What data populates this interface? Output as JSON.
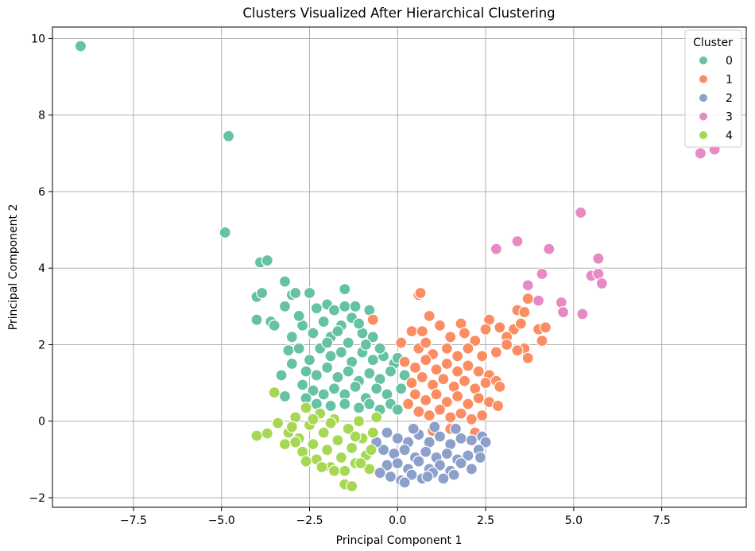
{
  "chart_data": {
    "type": "scatter",
    "title": "Clusters Visualized After Hierarchical Clustering",
    "xlabel": "Principal Component 1",
    "ylabel": "Principal Component 2",
    "xlim": [
      -9.8,
      9.9
    ],
    "ylim": [
      -2.25,
      10.3
    ],
    "xticks": [
      -7.5,
      -5.0,
      -2.5,
      0.0,
      2.5,
      5.0,
      7.5
    ],
    "xtick_labels": [
      "−7.5",
      "−5.0",
      "−2.5",
      "0.0",
      "2.5",
      "5.0",
      "7.5"
    ],
    "yticks": [
      -2,
      0,
      2,
      4,
      6,
      8,
      10
    ],
    "ytick_labels": [
      "−2",
      "0",
      "2",
      "4",
      "6",
      "8",
      "10"
    ],
    "grid": true,
    "legend": {
      "title": "Cluster",
      "position": "top-right"
    },
    "series": [
      {
        "name": "0",
        "color": "#66c2a5",
        "points": [
          [
            -9.0,
            9.8
          ],
          [
            -4.8,
            7.45
          ],
          [
            -4.9,
            4.93
          ],
          [
            -3.9,
            4.15
          ],
          [
            -3.7,
            4.2
          ],
          [
            -4.0,
            3.25
          ],
          [
            -3.85,
            3.35
          ],
          [
            -4.0,
            2.65
          ],
          [
            -3.6,
            2.6
          ],
          [
            -3.5,
            2.5
          ],
          [
            -3.2,
            3.65
          ],
          [
            -3.0,
            3.3
          ],
          [
            -2.9,
            3.35
          ],
          [
            -2.5,
            3.35
          ],
          [
            -3.2,
            3.0
          ],
          [
            -2.3,
            2.95
          ],
          [
            -2.0,
            3.05
          ],
          [
            -1.8,
            2.9
          ],
          [
            -1.5,
            3.0
          ],
          [
            -1.5,
            3.45
          ],
          [
            -1.2,
            3.0
          ],
          [
            -0.8,
            2.9
          ],
          [
            -3.0,
            2.2
          ],
          [
            -2.7,
            2.5
          ],
          [
            -2.4,
            2.3
          ],
          [
            -2.1,
            2.6
          ],
          [
            -1.9,
            2.2
          ],
          [
            -1.6,
            2.5
          ],
          [
            -1.3,
            2.7
          ],
          [
            -1.0,
            2.3
          ],
          [
            -0.7,
            2.2
          ],
          [
            -3.1,
            1.85
          ],
          [
            -2.8,
            1.9
          ],
          [
            -2.5,
            1.6
          ],
          [
            -2.2,
            1.9
          ],
          [
            -1.9,
            1.7
          ],
          [
            -1.6,
            1.8
          ],
          [
            -1.3,
            1.55
          ],
          [
            -1.0,
            1.8
          ],
          [
            -0.7,
            1.6
          ],
          [
            -0.4,
            1.7
          ],
          [
            -0.1,
            1.5
          ],
          [
            -3.0,
            1.5
          ],
          [
            -2.6,
            1.3
          ],
          [
            -2.3,
            1.2
          ],
          [
            -2.0,
            1.4
          ],
          [
            -1.7,
            1.15
          ],
          [
            -1.4,
            1.3
          ],
          [
            -1.1,
            1.05
          ],
          [
            -0.8,
            1.25
          ],
          [
            -0.5,
            1.1
          ],
          [
            -0.2,
            1.3
          ],
          [
            0.2,
            1.2
          ],
          [
            -3.3,
            1.2
          ],
          [
            -2.7,
            0.95
          ],
          [
            -2.4,
            0.8
          ],
          [
            -2.1,
            0.7
          ],
          [
            -1.8,
            0.85
          ],
          [
            -1.5,
            0.7
          ],
          [
            -1.2,
            0.9
          ],
          [
            -0.9,
            0.6
          ],
          [
            -0.6,
            0.85
          ],
          [
            -0.3,
            0.7
          ],
          [
            0.1,
            0.85
          ],
          [
            -2.6,
            0.6
          ],
          [
            -2.3,
            0.45
          ],
          [
            -1.9,
            0.4
          ],
          [
            -1.5,
            0.45
          ],
          [
            -1.1,
            0.35
          ],
          [
            -0.8,
            0.45
          ],
          [
            -0.5,
            0.3
          ],
          [
            -0.2,
            0.45
          ],
          [
            0.0,
            0.3
          ],
          [
            -3.2,
            0.65
          ],
          [
            -2.0,
            2.05
          ],
          [
            -1.4,
            2.05
          ],
          [
            -0.9,
            2.0
          ],
          [
            -2.8,
            2.75
          ],
          [
            -1.7,
            2.35
          ],
          [
            -1.1,
            2.55
          ],
          [
            -0.5,
            1.9
          ],
          [
            0.0,
            1.65
          ]
        ]
      },
      {
        "name": "1",
        "color": "#fc8d62",
        "points": [
          [
            0.6,
            3.3
          ],
          [
            0.65,
            3.35
          ],
          [
            3.7,
            3.2
          ],
          [
            3.4,
            2.9
          ],
          [
            3.6,
            2.85
          ],
          [
            0.9,
            2.75
          ],
          [
            1.2,
            2.5
          ],
          [
            1.8,
            2.55
          ],
          [
            2.6,
            2.65
          ],
          [
            2.9,
            2.45
          ],
          [
            3.3,
            2.4
          ],
          [
            3.5,
            2.55
          ],
          [
            4.0,
            2.4
          ],
          [
            4.2,
            2.45
          ],
          [
            0.4,
            2.35
          ],
          [
            0.7,
            2.35
          ],
          [
            1.5,
            2.2
          ],
          [
            2.2,
            2.1
          ],
          [
            2.5,
            2.4
          ],
          [
            3.1,
            2.2
          ],
          [
            3.6,
            1.9
          ],
          [
            3.7,
            1.65
          ],
          [
            4.1,
            2.1
          ],
          [
            0.1,
            2.05
          ],
          [
            0.6,
            1.9
          ],
          [
            1.0,
            1.75
          ],
          [
            1.4,
            1.9
          ],
          [
            1.7,
            1.7
          ],
          [
            2.0,
            1.9
          ],
          [
            2.4,
            1.7
          ],
          [
            2.8,
            1.8
          ],
          [
            3.1,
            2.0
          ],
          [
            3.4,
            1.85
          ],
          [
            0.2,
            1.55
          ],
          [
            0.5,
            1.4
          ],
          [
            0.8,
            1.6
          ],
          [
            1.1,
            1.35
          ],
          [
            1.4,
            1.5
          ],
          [
            1.7,
            1.3
          ],
          [
            2.0,
            1.45
          ],
          [
            2.3,
            1.3
          ],
          [
            2.6,
            1.2
          ],
          [
            0.4,
            1.0
          ],
          [
            0.7,
            1.15
          ],
          [
            1.0,
            0.95
          ],
          [
            1.3,
            1.1
          ],
          [
            1.6,
            0.9
          ],
          [
            1.9,
            1.05
          ],
          [
            2.2,
            0.85
          ],
          [
            2.5,
            1.0
          ],
          [
            2.8,
            1.05
          ],
          [
            2.9,
            0.9
          ],
          [
            0.5,
            0.7
          ],
          [
            0.8,
            0.55
          ],
          [
            1.1,
            0.7
          ],
          [
            1.4,
            0.5
          ],
          [
            1.7,
            0.65
          ],
          [
            2.0,
            0.45
          ],
          [
            2.3,
            0.6
          ],
          [
            2.6,
            0.5
          ],
          [
            2.85,
            0.4
          ],
          [
            0.6,
            0.25
          ],
          [
            0.9,
            0.15
          ],
          [
            1.2,
            0.3
          ],
          [
            1.5,
            0.1
          ],
          [
            1.8,
            0.2
          ],
          [
            2.1,
            0.05
          ],
          [
            2.4,
            0.15
          ],
          [
            1.0,
            -0.25
          ],
          [
            1.5,
            -0.2
          ],
          [
            2.2,
            -0.3
          ],
          [
            -0.7,
            2.65
          ],
          [
            0.3,
            0.45
          ],
          [
            0.8,
            2.05
          ],
          [
            1.9,
            2.3
          ]
        ]
      },
      {
        "name": "2",
        "color": "#8da0cb",
        "points": [
          [
            -0.3,
            -0.3
          ],
          [
            0.0,
            -0.45
          ],
          [
            0.3,
            -0.55
          ],
          [
            0.6,
            -0.35
          ],
          [
            0.9,
            -0.55
          ],
          [
            1.2,
            -0.4
          ],
          [
            1.5,
            -0.6
          ],
          [
            1.8,
            -0.45
          ],
          [
            2.1,
            -0.5
          ],
          [
            2.4,
            -0.4
          ],
          [
            2.5,
            -0.55
          ],
          [
            -0.4,
            -0.75
          ],
          [
            -0.1,
            -0.85
          ],
          [
            0.2,
            -0.75
          ],
          [
            0.5,
            -0.95
          ],
          [
            0.8,
            -0.8
          ],
          [
            1.1,
            -0.95
          ],
          [
            1.4,
            -0.85
          ],
          [
            1.7,
            -1.0
          ],
          [
            2.0,
            -0.9
          ],
          [
            2.3,
            -0.75
          ],
          [
            -0.3,
            -1.15
          ],
          [
            0.0,
            -1.1
          ],
          [
            0.3,
            -1.25
          ],
          [
            0.6,
            -1.05
          ],
          [
            0.9,
            -1.25
          ],
          [
            1.2,
            -1.15
          ],
          [
            1.5,
            -1.3
          ],
          [
            1.8,
            -1.1
          ],
          [
            2.1,
            -1.25
          ],
          [
            -0.2,
            -1.45
          ],
          [
            0.1,
            -1.55
          ],
          [
            0.4,
            -1.4
          ],
          [
            0.7,
            -1.5
          ],
          [
            1.0,
            -1.35
          ],
          [
            1.3,
            -1.5
          ],
          [
            1.6,
            -1.4
          ],
          [
            -0.5,
            -1.35
          ],
          [
            0.2,
            -1.6
          ],
          [
            0.85,
            -1.45
          ],
          [
            2.35,
            -0.95
          ],
          [
            -0.6,
            -0.55
          ],
          [
            0.45,
            -0.2
          ],
          [
            1.05,
            -0.15
          ],
          [
            1.65,
            -0.2
          ]
        ]
      },
      {
        "name": "3",
        "color": "#e78ac3",
        "points": [
          [
            8.6,
            7.0
          ],
          [
            9.0,
            7.1
          ],
          [
            5.2,
            5.45
          ],
          [
            3.4,
            4.7
          ],
          [
            2.8,
            4.5
          ],
          [
            4.3,
            4.5
          ],
          [
            5.7,
            4.25
          ],
          [
            5.5,
            3.8
          ],
          [
            5.7,
            3.85
          ],
          [
            5.8,
            3.6
          ],
          [
            4.1,
            3.85
          ],
          [
            3.7,
            3.55
          ],
          [
            4.0,
            3.15
          ],
          [
            4.65,
            3.1
          ],
          [
            4.7,
            2.85
          ],
          [
            5.25,
            2.8
          ]
        ]
      },
      {
        "name": "4",
        "color": "#a6d854",
        "points": [
          [
            -3.5,
            0.75
          ],
          [
            -4.0,
            -0.38
          ],
          [
            -3.7,
            -0.32
          ],
          [
            -3.4,
            -0.05
          ],
          [
            -3.2,
            -0.6
          ],
          [
            -3.1,
            -0.3
          ],
          [
            -2.9,
            0.1
          ],
          [
            -2.8,
            -0.45
          ],
          [
            -2.7,
            -0.8
          ],
          [
            -2.6,
            0.35
          ],
          [
            -2.5,
            -0.1
          ],
          [
            -2.4,
            -0.6
          ],
          [
            -2.3,
            -1.0
          ],
          [
            -2.2,
            0.2
          ],
          [
            -2.1,
            -0.3
          ],
          [
            -2.0,
            -0.75
          ],
          [
            -1.9,
            -1.2
          ],
          [
            -1.8,
            0.05
          ],
          [
            -1.7,
            -0.5
          ],
          [
            -1.6,
            -0.95
          ],
          [
            -1.5,
            -1.3
          ],
          [
            -1.4,
            -0.2
          ],
          [
            -1.3,
            -0.7
          ],
          [
            -1.2,
            -1.1
          ],
          [
            -1.1,
            0.0
          ],
          [
            -1.0,
            -0.45
          ],
          [
            -0.9,
            -0.9
          ],
          [
            -0.8,
            -1.25
          ],
          [
            -0.7,
            -0.3
          ],
          [
            -0.6,
            0.1
          ],
          [
            -1.5,
            -1.65
          ],
          [
            -1.3,
            -1.7
          ],
          [
            -1.8,
            -1.3
          ],
          [
            -2.6,
            -1.05
          ],
          [
            -2.9,
            -0.55
          ],
          [
            -3.0,
            -0.15
          ],
          [
            -2.4,
            0.05
          ],
          [
            -1.9,
            -0.05
          ],
          [
            -1.2,
            -0.4
          ],
          [
            -0.75,
            -0.75
          ],
          [
            -2.15,
            -1.2
          ],
          [
            -1.05,
            -1.1
          ]
        ]
      }
    ]
  }
}
